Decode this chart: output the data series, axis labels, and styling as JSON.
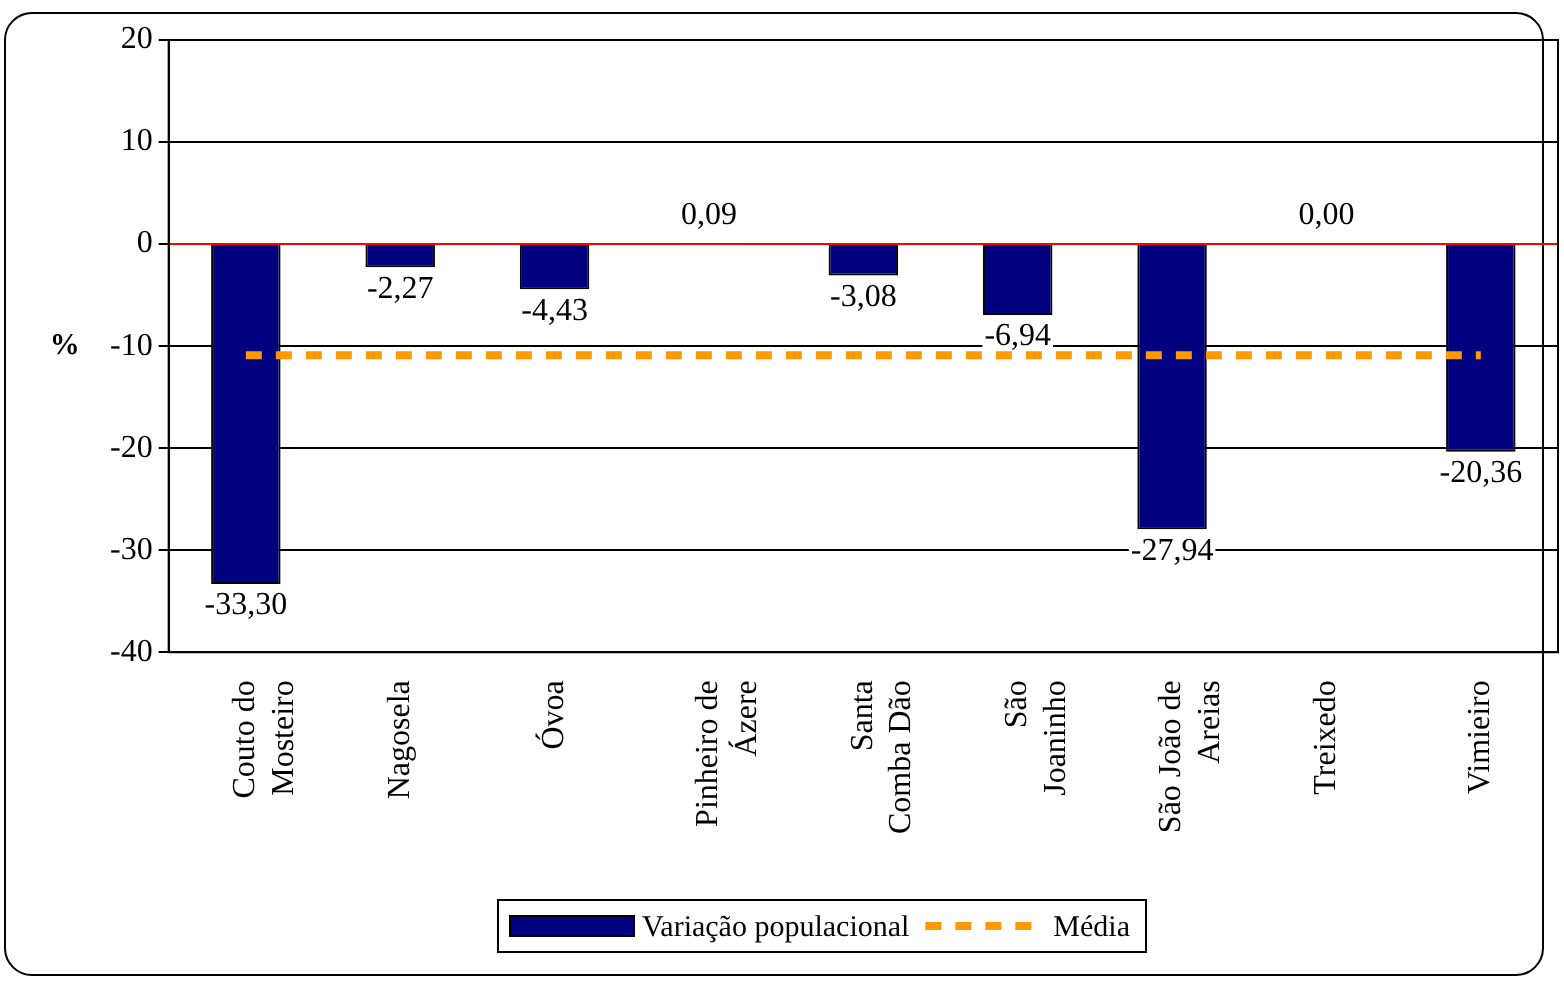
{
  "chart_data": {
    "type": "bar",
    "ylabel": "%",
    "categories": [
      "Couto do\nMosteiro",
      "Nagosela",
      "Óvoa",
      "Pinheiro de\nÁzere",
      "Santa\nComba Dão",
      "São\nJoaninho",
      "São João de\nAreias",
      "Treixedo",
      "Vimieiro"
    ],
    "series": [
      {
        "name": "Variação populacional",
        "color": "#000080",
        "values": [
          -33.3,
          -2.27,
          -4.43,
          0.09,
          -3.08,
          -6.94,
          -27.94,
          0.0,
          -20.36
        ],
        "value_labels": [
          "-33,30",
          "-2,27",
          "-4,43",
          "0,09",
          "-3,08",
          "-6,94",
          "-27,94",
          "0,00",
          "-20,36"
        ]
      },
      {
        "name": "Média",
        "type": "line",
        "color": "#ff9900",
        "line_style": "dashed",
        "marker": "none",
        "values": [
          -10.9,
          -10.9,
          -10.9,
          -10.9,
          -10.9,
          -10.9,
          -10.9,
          -10.9,
          -10.9
        ]
      }
    ],
    "ylim": [
      -40,
      20
    ],
    "yticks": [
      -40,
      -30,
      -20,
      -10,
      0,
      10,
      20
    ],
    "grid": "y",
    "legend": "bottom",
    "ref_lines": [
      {
        "axis": "y",
        "value": 0,
        "color": "#ff0000"
      }
    ]
  }
}
